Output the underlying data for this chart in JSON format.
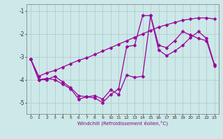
{
  "xlabel": "Windchill (Refroidissement éolien,°C)",
  "hours": [
    0,
    1,
    2,
    3,
    4,
    5,
    6,
    7,
    8,
    9,
    10,
    11,
    12,
    13,
    14,
    15,
    16,
    17,
    18,
    19,
    20,
    21,
    22,
    23
  ],
  "line1": [
    -3.1,
    -4.0,
    -4.0,
    -3.85,
    -4.1,
    -4.35,
    -4.7,
    -4.75,
    -4.8,
    -5.0,
    -4.65,
    -4.4,
    -2.55,
    -2.5,
    -1.2,
    -1.2,
    -2.5,
    -2.6,
    -2.3,
    -1.9,
    -2.05,
    -2.2,
    -2.3,
    -3.4
  ],
  "line2": [
    -3.1,
    -4.0,
    -3.95,
    -4.0,
    -4.2,
    -4.4,
    -4.85,
    -4.75,
    -4.7,
    -4.85,
    -4.45,
    -4.65,
    -3.8,
    -3.9,
    -3.85,
    -1.2,
    -2.7,
    -2.95,
    -2.75,
    -2.5,
    -2.15,
    -1.9,
    -2.2,
    -3.35
  ],
  "line3": [
    -3.1,
    -3.85,
    -3.7,
    -3.6,
    -3.45,
    -3.3,
    -3.15,
    -3.05,
    -2.9,
    -2.75,
    -2.6,
    -2.45,
    -2.3,
    -2.15,
    -2.0,
    -1.85,
    -1.7,
    -1.6,
    -1.5,
    -1.4,
    -1.35,
    -1.3,
    -1.3,
    -1.35
  ],
  "line_color": "#990099",
  "bg_color": "#cce8e8",
  "grid_color": "#b0c8c8",
  "ylim": [
    -5.5,
    -0.7
  ],
  "yticks": [
    -5,
    -4,
    -3,
    -2,
    -1
  ],
  "marker": "D",
  "markersize": 2.5,
  "linewidth": 0.9
}
